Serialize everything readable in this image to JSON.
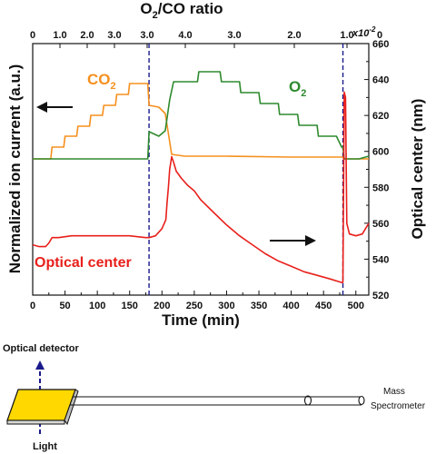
{
  "chart_data": {
    "type": "line",
    "top_axis": {
      "label_main": "O",
      "label_sub": "2",
      "label_rest": "/CO ratio",
      "ticks": [
        "0",
        "1.0",
        "2.0",
        "3.0",
        "3.0",
        "4.0",
        "3.0",
        "2.0",
        "1.0",
        "0"
      ],
      "scale_note": "x10",
      "scale_exp": "-2"
    },
    "xlabel": "Time (min)",
    "xlim": [
      0,
      520
    ],
    "x_ticks": [
      0,
      50,
      100,
      150,
      200,
      250,
      300,
      350,
      400,
      450,
      500
    ],
    "ylabel_left": "Normalized ion current (a.u.)",
    "ylabel_right": "Optical center (nm)",
    "y2lim": [
      520,
      660
    ],
    "y2_ticks": [
      520,
      540,
      560,
      580,
      600,
      620,
      640,
      660
    ],
    "markers_x": [
      180,
      480
    ],
    "annotations": {
      "co2_main": "CO",
      "co2_sub": "2",
      "o2_main": "O",
      "o2_sub": "2",
      "optical": "Optical center"
    },
    "series": [
      {
        "name": "CO2",
        "axis": "left",
        "color": "#f5901e",
        "x": [
          0,
          28,
          30,
          48,
          50,
          68,
          70,
          88,
          90,
          108,
          110,
          128,
          130,
          148,
          150,
          178,
          180,
          195,
          205,
          215,
          235,
          300,
          400,
          470,
          480,
          481,
          490,
          520
        ],
        "y": [
          0.0,
          0.0,
          0.13,
          0.13,
          0.25,
          0.25,
          0.36,
          0.36,
          0.48,
          0.48,
          0.59,
          0.59,
          0.71,
          0.71,
          0.83,
          0.83,
          0.59,
          0.57,
          0.5,
          0.05,
          0.03,
          0.03,
          0.02,
          0.02,
          0.02,
          0.0,
          0.0,
          0.0
        ]
      },
      {
        "name": "O2",
        "axis": "left",
        "color": "#2e8a2e",
        "x": [
          0,
          178,
          180,
          195,
          205,
          212,
          218,
          220,
          255,
          257,
          290,
          292,
          320,
          322,
          350,
          352,
          380,
          382,
          410,
          412,
          440,
          442,
          470,
          478,
          480,
          482,
          505,
          520
        ],
        "y": [
          0.0,
          0.0,
          0.3,
          0.25,
          0.31,
          0.65,
          0.85,
          0.85,
          0.85,
          0.96,
          0.96,
          0.85,
          0.85,
          0.73,
          0.73,
          0.61,
          0.61,
          0.49,
          0.49,
          0.37,
          0.37,
          0.25,
          0.25,
          0.13,
          0.13,
          0.0,
          0.0,
          0.03
        ]
      },
      {
        "name": "Optical center",
        "axis": "right",
        "color": "#e8201c",
        "x": [
          0,
          10,
          20,
          25,
          30,
          40,
          60,
          100,
          150,
          175,
          180,
          190,
          200,
          206,
          208,
          210,
          212,
          215,
          218,
          222,
          230,
          240,
          250,
          260,
          280,
          300,
          320,
          340,
          360,
          380,
          400,
          420,
          440,
          460,
          478,
          480,
          482,
          484,
          486,
          490,
          500,
          510,
          515,
          520
        ],
        "y": [
          548,
          547,
          547,
          549,
          552,
          552,
          553,
          553,
          553,
          552,
          552,
          553,
          557,
          562,
          572,
          580,
          590,
          597,
          594,
          589,
          585,
          581,
          578,
          573,
          566,
          559,
          553,
          548,
          543,
          539,
          536,
          533,
          531,
          529,
          527,
          527,
          633,
          630,
          560,
          554,
          553,
          554,
          557,
          560
        ]
      }
    ]
  },
  "diagram": {
    "optical_detector": "Optical detector",
    "light": "Light",
    "mass_spec_line1": "Mass",
    "mass_spec_line2": "Spectrometer"
  }
}
